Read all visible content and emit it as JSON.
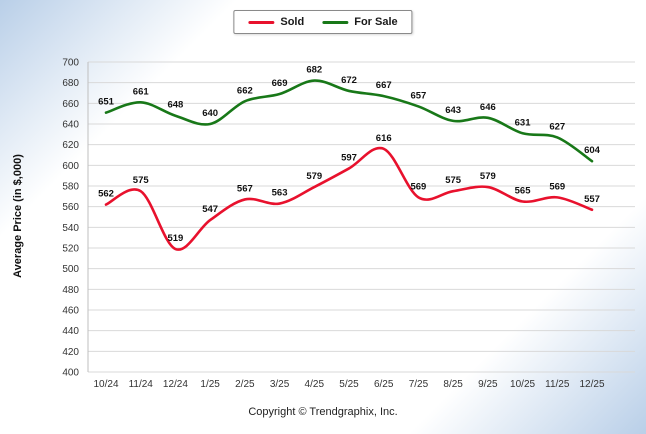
{
  "legend": {
    "items": [
      {
        "label": "Sold",
        "color": "#e8112d"
      },
      {
        "label": "For Sale",
        "color": "#187818"
      }
    ]
  },
  "footer": {
    "text": "Copyright © Trendgraphix, Inc."
  },
  "chart_data": {
    "type": "line",
    "title": "",
    "categories": [
      "10/24",
      "11/24",
      "12/24",
      "1/25",
      "2/25",
      "3/25",
      "4/25",
      "5/25",
      "6/25",
      "7/25",
      "8/25",
      "9/25",
      "10/25",
      "11/25",
      "12/25"
    ],
    "series": [
      {
        "name": "Sold",
        "color": "#e8112d",
        "values": [
          562,
          575,
          519,
          547,
          567,
          563,
          579,
          597,
          616,
          569,
          575,
          579,
          565,
          569,
          557
        ]
      },
      {
        "name": "For Sale",
        "color": "#187818",
        "values": [
          651,
          661,
          648,
          640,
          662,
          669,
          682,
          672,
          667,
          657,
          643,
          646,
          631,
          627,
          604
        ]
      }
    ],
    "xlabel": "",
    "ylabel": "Average Price (in $,000)",
    "ylim": [
      400,
      700
    ],
    "ytick_step": 20,
    "grid": "horizontal",
    "legend_position": "top-center"
  }
}
